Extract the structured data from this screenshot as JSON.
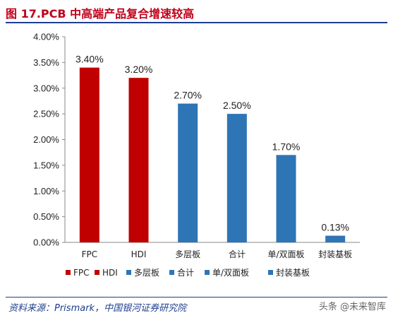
{
  "header": {
    "title": "图 17.PCB 中高端产品复合增速较高"
  },
  "footer": {
    "source": "资料来源：Prismark，中国银河证券研究院",
    "watermark": "头条 @未来智库"
  },
  "colors": {
    "red": "#c00000",
    "blue": "#2e75b6",
    "title": "#c0001a",
    "rule": "#1f3f8f"
  },
  "chart_data": {
    "type": "bar",
    "title": "",
    "xlabel": "",
    "ylabel": "",
    "categories": [
      "FPC",
      "HDI",
      "多层板",
      "合计",
      "单/双面板",
      "封装基板"
    ],
    "values": [
      3.4,
      3.2,
      2.7,
      2.5,
      1.7,
      0.13
    ],
    "value_labels": [
      "3.40%",
      "3.20%",
      "2.70%",
      "2.50%",
      "1.70%",
      "0.13%"
    ],
    "bar_colors": [
      "#c00000",
      "#c00000",
      "#2e75b6",
      "#2e75b6",
      "#2e75b6",
      "#2e75b6"
    ],
    "ylim": [
      0,
      4
    ],
    "yticks": [
      0,
      0.5,
      1,
      1.5,
      2,
      2.5,
      3,
      3.5,
      4
    ],
    "ytick_labels": [
      "0.00%",
      "0.50%",
      "1.00%",
      "1.50%",
      "2.00%",
      "2.50%",
      "3.00%",
      "3.50%",
      "4.00%"
    ],
    "grid": false,
    "legend": {
      "placement": "bottom",
      "entries": [
        {
          "name": "FPC",
          "color": "#c00000"
        },
        {
          "name": "HDI",
          "color": "#c00000"
        },
        {
          "name": "多层板",
          "color": "#2e75b6"
        },
        {
          "name": "合计",
          "color": "#2e75b6"
        },
        {
          "name": "单/双面板",
          "color": "#2e75b6"
        },
        {
          "name": "封装基板",
          "color": "#2e75b6"
        }
      ]
    }
  }
}
